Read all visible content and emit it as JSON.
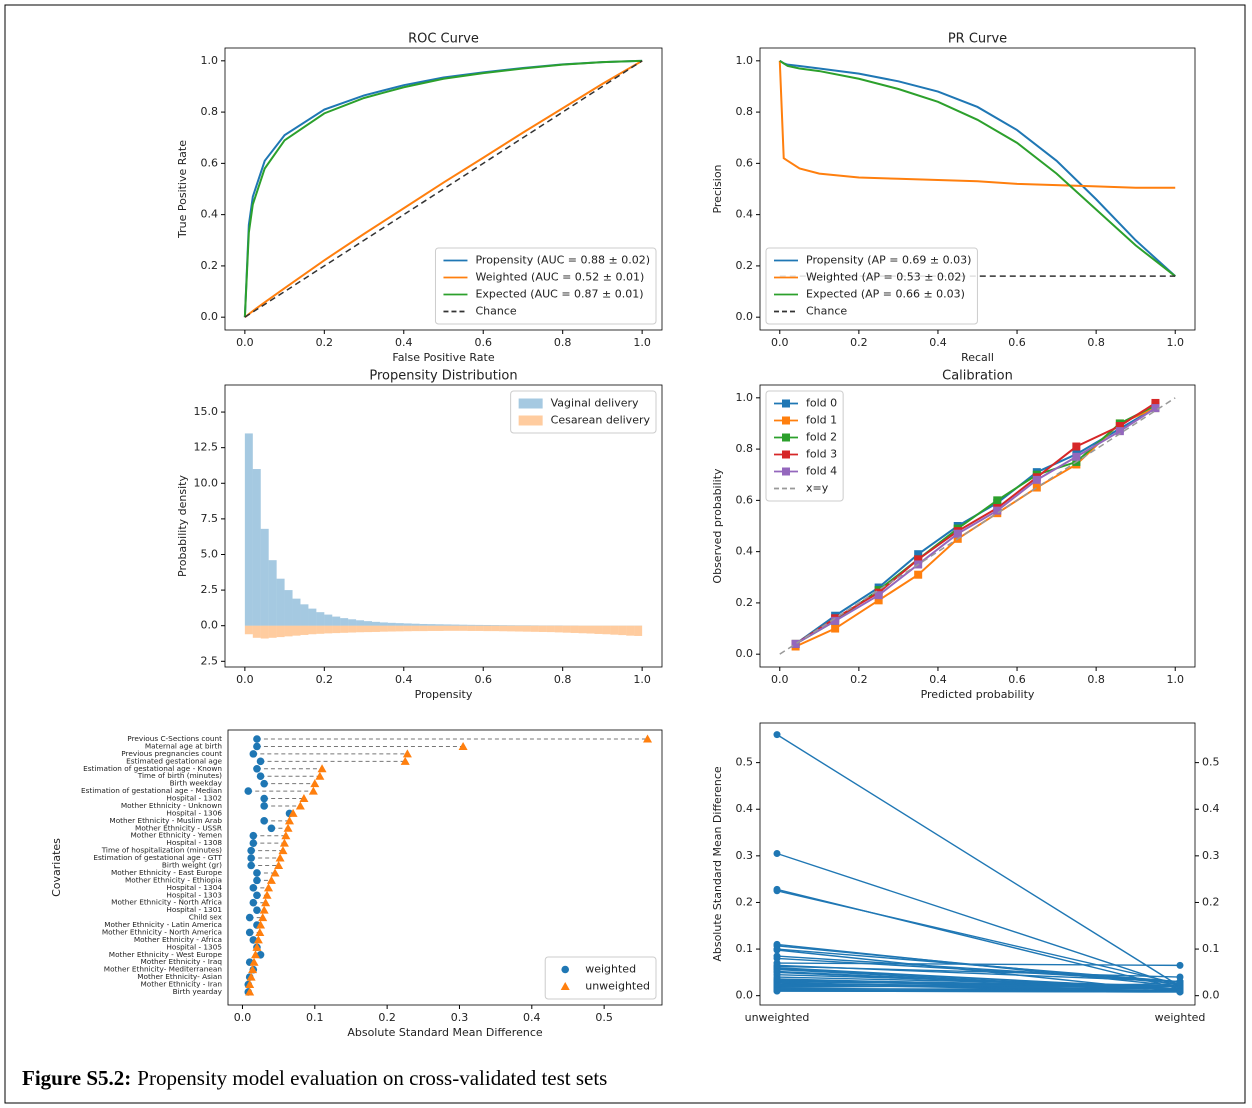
{
  "chart_data": [
    {
      "type": "line",
      "title": "ROC Curve",
      "xlabel": "False Positive Rate",
      "ylabel": "True Positive Rate",
      "x": [
        0,
        0.01,
        0.02,
        0.05,
        0.1,
        0.2,
        0.3,
        0.4,
        0.5,
        0.6,
        0.7,
        0.8,
        0.9,
        1.0
      ],
      "series": [
        {
          "name": "Propensity (AUC = 0.88 ± 0.02)",
          "color": "#1f77b4",
          "values": [
            0,
            0.36,
            0.47,
            0.61,
            0.71,
            0.81,
            0.865,
            0.905,
            0.935,
            0.955,
            0.972,
            0.986,
            0.995,
            1
          ]
        },
        {
          "name": "Weighted (AUC = 0.52 ± 0.01)",
          "color": "#ff7f0e",
          "values": [
            0,
            0.012,
            0.024,
            0.058,
            0.113,
            0.222,
            0.325,
            0.425,
            0.525,
            0.622,
            0.72,
            0.815,
            0.91,
            1
          ]
        },
        {
          "name": "Expected (AUC = 0.87 ± 0.01)",
          "color": "#2ca02c",
          "values": [
            0,
            0.33,
            0.44,
            0.58,
            0.69,
            0.795,
            0.855,
            0.897,
            0.93,
            0.952,
            0.97,
            0.985,
            0.995,
            1
          ]
        },
        {
          "name": "Chance",
          "color": "#333333",
          "dash": true,
          "x": [
            0,
            1
          ],
          "values": [
            0,
            1
          ]
        }
      ],
      "xlim": [
        -0.05,
        1.05
      ],
      "ylim": [
        -0.05,
        1.05
      ],
      "xticks": [
        {
          "value": 0,
          "label": "0.0"
        },
        0.2,
        0.4,
        0.6,
        0.8,
        {
          "value": 1,
          "label": "1.0"
        }
      ],
      "yticks": [
        {
          "value": 0,
          "label": "0.0"
        },
        0.2,
        0.4,
        0.6,
        0.8,
        {
          "value": 1,
          "label": "1.0"
        }
      ],
      "legend": "lower right"
    },
    {
      "type": "line",
      "title": "PR Curve",
      "xlabel": "Recall",
      "ylabel": "Precision",
      "x": [
        0,
        0.01,
        0.02,
        0.05,
        0.1,
        0.2,
        0.3,
        0.4,
        0.5,
        0.6,
        0.7,
        0.8,
        0.9,
        1.0
      ],
      "series": [
        {
          "name": "Propensity (AP = 0.69 ± 0.03)",
          "color": "#1f77b4",
          "values": [
            1,
            0.99,
            0.985,
            0.98,
            0.97,
            0.95,
            0.92,
            0.88,
            0.82,
            0.73,
            0.61,
            0.46,
            0.3,
            0.16
          ]
        },
        {
          "name": "Weighted (AP = 0.53 ± 0.02)",
          "color": "#ff7f0e",
          "values": [
            1,
            0.62,
            0.61,
            0.58,
            0.56,
            0.545,
            0.54,
            0.535,
            0.53,
            0.52,
            0.515,
            0.51,
            0.505,
            0.505
          ]
        },
        {
          "name": "Expected (AP = 0.66 ± 0.03)",
          "color": "#2ca02c",
          "values": [
            1,
            0.99,
            0.98,
            0.97,
            0.96,
            0.93,
            0.89,
            0.84,
            0.77,
            0.68,
            0.56,
            0.42,
            0.28,
            0.16
          ]
        },
        {
          "name": "Chance",
          "color": "#333333",
          "dash": true,
          "x": [
            0,
            1
          ],
          "values": [
            0.16,
            0.16
          ]
        }
      ],
      "xlim": [
        -0.05,
        1.05
      ],
      "ylim": [
        -0.05,
        1.05
      ],
      "xticks": [
        {
          "value": 0,
          "label": "0.0"
        },
        0.2,
        0.4,
        0.6,
        0.8,
        {
          "value": 1,
          "label": "1.0"
        }
      ],
      "yticks": [
        {
          "value": 0,
          "label": "0.0"
        },
        0.2,
        0.4,
        0.6,
        0.8,
        {
          "value": 1,
          "label": "1.0"
        }
      ],
      "legend": "lower left"
    },
    {
      "type": "histogram",
      "title": "Propensity Distribution",
      "xlabel": "Propensity",
      "ylabel": "Probability density",
      "alpha": 0.4,
      "bins": [
        0,
        0.02,
        0.04,
        0.06,
        0.08,
        0.1,
        0.12,
        0.14,
        0.16,
        0.18,
        0.2,
        0.22,
        0.24,
        0.26,
        0.28,
        0.3,
        0.32,
        0.34,
        0.36,
        0.38,
        0.4,
        0.42,
        0.44,
        0.46,
        0.48,
        0.5,
        0.52,
        0.54,
        0.56,
        0.58,
        0.6,
        0.62,
        0.64,
        0.66,
        0.68,
        0.7,
        0.72,
        0.74,
        0.76,
        0.78,
        0.8,
        0.82,
        0.84,
        0.86,
        0.88,
        0.9,
        0.92,
        0.94,
        0.96,
        0.98,
        1.0
      ],
      "series": [
        {
          "name": "Vaginal delivery",
          "color": "#1f77b4",
          "values": [
            13.5,
            11.0,
            6.8,
            4.6,
            3.3,
            2.5,
            1.9,
            1.5,
            1.2,
            0.95,
            0.78,
            0.64,
            0.53,
            0.45,
            0.38,
            0.32,
            0.27,
            0.23,
            0.2,
            0.18,
            0.16,
            0.14,
            0.12,
            0.11,
            0.1,
            0.09,
            0.08,
            0.07,
            0.06,
            0.055,
            0.05,
            0.045,
            0.04,
            0.035,
            0.03,
            0.03,
            0.025,
            0.02,
            0.02,
            0.02,
            0.015,
            0.015,
            0.01,
            0.01,
            0.01,
            0.01,
            0.01,
            0.01,
            0.01,
            0.01
          ]
        },
        {
          "name": "Cesarean delivery",
          "color": "#ff7f0e",
          "values": [
            -0.6,
            -0.85,
            -0.9,
            -0.85,
            -0.8,
            -0.75,
            -0.7,
            -0.65,
            -0.6,
            -0.57,
            -0.54,
            -0.52,
            -0.5,
            -0.48,
            -0.46,
            -0.45,
            -0.44,
            -0.42,
            -0.41,
            -0.4,
            -0.39,
            -0.38,
            -0.38,
            -0.37,
            -0.37,
            -0.36,
            -0.36,
            -0.36,
            -0.37,
            -0.37,
            -0.38,
            -0.38,
            -0.39,
            -0.4,
            -0.41,
            -0.42,
            -0.43,
            -0.44,
            -0.45,
            -0.47,
            -0.49,
            -0.51,
            -0.53,
            -0.55,
            -0.58,
            -0.6,
            -0.63,
            -0.66,
            -0.7,
            -0.72
          ]
        }
      ],
      "xlim": [
        -0.05,
        1.05
      ],
      "ylim": [
        -2.9,
        16.9
      ],
      "xticks": [
        {
          "value": 0,
          "label": "0.0"
        },
        0.2,
        0.4,
        0.6,
        0.8,
        {
          "value": 1,
          "label": "1.0"
        }
      ],
      "yticks": [
        {
          "value": -2.5,
          "label": "2.5"
        },
        {
          "value": 0,
          "label": "0.0"
        },
        2.5,
        {
          "value": 5,
          "label": "5.0"
        },
        7.5,
        {
          "value": 10,
          "label": "10.0"
        },
        12.5,
        {
          "value": 15,
          "label": "15.0"
        }
      ],
      "legend": "upper right"
    },
    {
      "type": "line",
      "title": "Calibration",
      "xlabel": "Predicted probability",
      "ylabel": "Observed probability",
      "marker": "square",
      "x": [
        0.04,
        0.14,
        0.25,
        0.35,
        0.45,
        0.55,
        0.65,
        0.75,
        0.86,
        0.95
      ],
      "series": [
        {
          "name": "fold 0",
          "color": "#1f77b4",
          "values": [
            0.04,
            0.15,
            0.26,
            0.39,
            0.5,
            0.59,
            0.71,
            0.78,
            0.88,
            0.96
          ]
        },
        {
          "name": "fold 1",
          "color": "#ff7f0e",
          "values": [
            0.03,
            0.1,
            0.21,
            0.31,
            0.45,
            0.55,
            0.65,
            0.74,
            0.9,
            0.96
          ]
        },
        {
          "name": "fold 2",
          "color": "#2ca02c",
          "values": [
            0.04,
            0.13,
            0.25,
            0.37,
            0.49,
            0.6,
            0.7,
            0.75,
            0.9,
            0.97
          ]
        },
        {
          "name": "fold 3",
          "color": "#d62728",
          "values": [
            0.04,
            0.14,
            0.24,
            0.37,
            0.48,
            0.57,
            0.69,
            0.81,
            0.89,
            0.98
          ]
        },
        {
          "name": "fold 4",
          "color": "#9467bd",
          "values": [
            0.04,
            0.13,
            0.23,
            0.35,
            0.47,
            0.56,
            0.68,
            0.77,
            0.87,
            0.96
          ]
        },
        {
          "name": "x=y",
          "color": "#999999",
          "dash": true,
          "x": [
            0,
            1
          ],
          "values": [
            0,
            1
          ]
        }
      ],
      "xlim": [
        -0.05,
        1.05
      ],
      "ylim": [
        -0.05,
        1.05
      ],
      "xticks": [
        {
          "value": 0,
          "label": "0.0"
        },
        0.2,
        0.4,
        0.6,
        0.8,
        {
          "value": 1,
          "label": "1.0"
        }
      ],
      "yticks": [
        {
          "value": 0,
          "label": "0.0"
        },
        0.2,
        0.4,
        0.6,
        0.8,
        {
          "value": 1,
          "label": "1.0"
        }
      ],
      "legend": "upper left"
    },
    {
      "type": "dot",
      "xlabel": "Absolute Standard Mean Difference",
      "ylabel": "Covariates",
      "categories": [
        "Previous C-Sections count",
        "Maternal age at birth",
        "Previous pregnancies count",
        "Estimated gestational age",
        "Estimation of gestational age - Known",
        "Time of birth (minutes)",
        "Birth weekday",
        "Estimation of gestational age - Median",
        "Hospital - 1302",
        "Mother Ethnicity - Unknown",
        "Hospital - 1306",
        "Mother Ethnicity - Muslim Arab",
        "Mother Ethnicity - USSR",
        "Mother Ethnicity - Yemen",
        "Hospital - 1308",
        "Time of hospitalization (minutes)",
        "Estimation of gestational age - GTT",
        "Birth weight (gr)",
        "Mother Ethnicity - East Europe",
        "Mother Ethnicity - Ethiopia",
        "Hospital - 1304",
        "Hospital - 1303",
        "Mother Ethnicity - North Africa",
        "Hospital - 1301",
        "Child sex",
        "Mother Ethnicity - Latin America",
        "Mother Ethnicity - North America",
        "Mother Ethnicity - Africa",
        "Hospital - 1305",
        "Mother Ethnicity - West Europe",
        "Mother Ethnicity - Iraq",
        "Mother Ethnicity- Mediterranean",
        "Mother Ethnicity- Asian",
        "Mother Ethnicity - Iran",
        "Birth yearday"
      ],
      "series": [
        {
          "name": "weighted",
          "color": "#1f77b4",
          "marker": "circle",
          "values": [
            0.02,
            0.02,
            0.015,
            0.025,
            0.02,
            0.025,
            0.03,
            0.008,
            0.03,
            0.03,
            0.065,
            0.03,
            0.04,
            0.015,
            0.015,
            0.012,
            0.012,
            0.012,
            0.02,
            0.02,
            0.015,
            0.02,
            0.015,
            0.02,
            0.01,
            0.02,
            0.01,
            0.015,
            0.02,
            0.025,
            0.01,
            0.015,
            0.01,
            0.008,
            0.008
          ]
        },
        {
          "name": "unweighted",
          "color": "#ff7f0e",
          "marker": "triangle",
          "values": [
            0.56,
            0.305,
            0.228,
            0.225,
            0.11,
            0.107,
            0.1,
            0.098,
            0.085,
            0.08,
            0.07,
            0.065,
            0.063,
            0.06,
            0.058,
            0.056,
            0.052,
            0.05,
            0.045,
            0.04,
            0.036,
            0.034,
            0.032,
            0.03,
            0.028,
            0.025,
            0.024,
            0.022,
            0.02,
            0.018,
            0.016,
            0.014,
            0.012,
            0.01,
            0.01
          ]
        }
      ],
      "xlim": [
        -0.02,
        0.58
      ],
      "xticks": [
        {
          "value": 0,
          "label": "0.0"
        },
        0.1,
        0.2,
        0.3,
        0.4,
        0.5
      ],
      "legend": "lower right"
    },
    {
      "type": "slope",
      "ylabel": "Absolute Standard Mean Difference",
      "color": "#1f77b4",
      "categories": [
        "unweighted",
        "weighted"
      ],
      "ylim": [
        -0.02,
        0.585
      ],
      "yticks": [
        {
          "value": 0,
          "label": "0.0"
        },
        0.1,
        0.2,
        0.3,
        0.4,
        0.5
      ],
      "y2lim": [
        -0.02,
        0.585
      ],
      "y2ticks": [
        {
          "value": 0,
          "label": "0.0"
        },
        0.1,
        0.2,
        0.3,
        0.4,
        0.5
      ]
    }
  ],
  "caption": {
    "label": "Figure S5.2:",
    "text": "Propensity model evaluation on cross-validated test sets"
  }
}
